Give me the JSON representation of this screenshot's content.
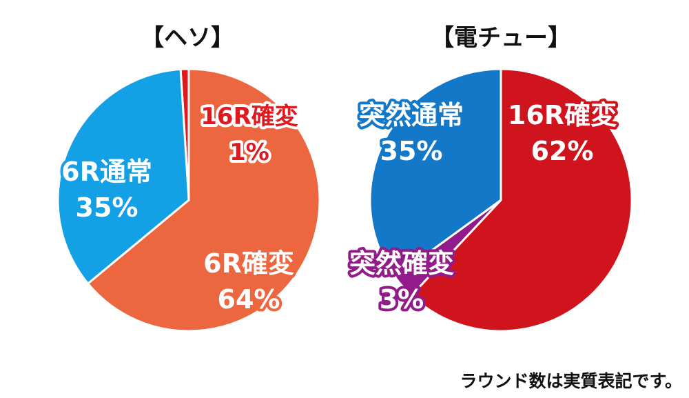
{
  "chart_data": [
    {
      "type": "pie",
      "title": "【ヘソ】",
      "slices": [
        {
          "line1": "16R確変",
          "line2": "1%",
          "value": 1,
          "color": "#e0191e",
          "text_color": "#e0191e",
          "outline_color": "#ffffff"
        },
        {
          "line1": "6R確変",
          "line2": "64%",
          "value": 64,
          "color": "#ec6640",
          "text_color": "#ffffff",
          "outline_color": "#ec6640"
        },
        {
          "line1": "6R通常",
          "line2": "35%",
          "value": 35,
          "color": "#13a0e4",
          "text_color": "#ffffff",
          "outline_color": "#13a0e4"
        }
      ]
    },
    {
      "type": "pie",
      "title": "【電チュー】",
      "slices": [
        {
          "line1": "16R確変",
          "line2": "62%",
          "value": 62,
          "color": "#d0141e",
          "text_color": "#ffffff",
          "outline_color": "#d0141e"
        },
        {
          "line1": "突然確変",
          "line2": "3%",
          "value": 3,
          "color": "#921b8a",
          "text_color": "#ffffff",
          "outline_color": "#921b8a"
        },
        {
          "line1": "突然通常",
          "line2": "35%",
          "value": 35,
          "color": "#1478c8",
          "text_color": "#ffffff",
          "outline_color": "#1478c8"
        }
      ]
    }
  ],
  "footnote": "ラウンド数は実質表記です。"
}
